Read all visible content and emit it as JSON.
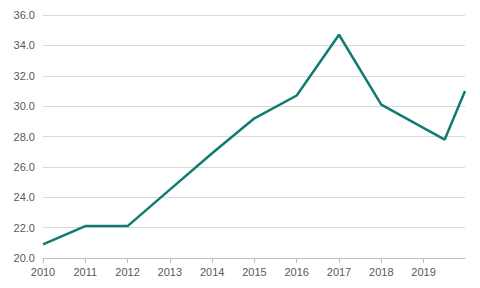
{
  "chart_data": {
    "type": "line",
    "x": [
      2010,
      2011,
      2012,
      2013,
      2014,
      2015,
      2016,
      2017,
      2018,
      2019.5,
      2019.98
    ],
    "values": [
      20.9,
      22.1,
      22.1,
      24.5,
      26.9,
      29.2,
      30.7,
      34.7,
      30.1,
      27.8,
      31.0
    ],
    "color": "#127b71",
    "xlim": [
      2010,
      2019.98
    ],
    "xticks": [
      2010,
      2011,
      2012,
      2013,
      2014,
      2015,
      2016,
      2017,
      2018,
      2019
    ],
    "ylim": [
      20,
      36
    ],
    "yticks": [
      {
        "value": 20,
        "label": "20.0"
      },
      {
        "value": 22,
        "label": "22.0"
      },
      {
        "value": 24,
        "label": "24.0"
      },
      {
        "value": 26,
        "label": "26.0"
      },
      {
        "value": 28,
        "label": "28.0"
      },
      {
        "value": 30,
        "label": "30.0"
      },
      {
        "value": 32,
        "label": "32.0"
      },
      {
        "value": 34,
        "label": "34.0"
      },
      {
        "value": 36,
        "label": "36.0"
      }
    ],
    "grid": true
  }
}
